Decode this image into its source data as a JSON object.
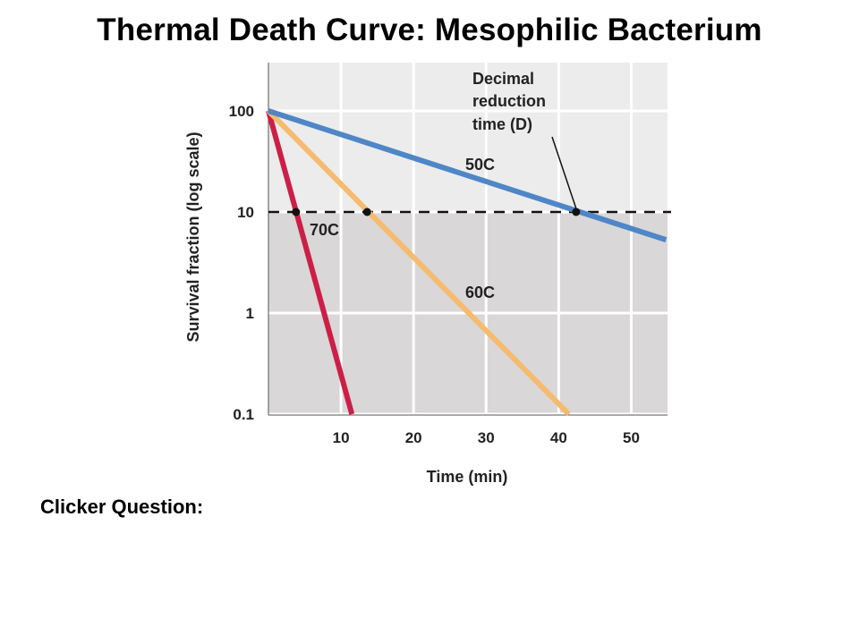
{
  "slide": {
    "title": "Thermal Death Curve: Mesophilic Bacterium",
    "question": "Clicker Question:"
  },
  "chart_data": {
    "type": "line",
    "title": "",
    "xlabel": "Time (min)",
    "ylabel": "Survival fraction (log scale)",
    "y_scale": "log",
    "xlim": [
      0,
      55
    ],
    "ylim": [
      0.1,
      200
    ],
    "x_ticks": [
      10,
      20,
      30,
      40,
      50
    ],
    "x_tick_labels": [
      "10",
      "20",
      "30",
      "40",
      "50"
    ],
    "y_ticks": [
      100,
      10,
      1,
      0.1
    ],
    "y_tick_labels": [
      "100",
      "10",
      "1",
      "0.1"
    ],
    "grid": true,
    "shaded_region": {
      "y_max": 10,
      "color": "#d9d7d8"
    },
    "reference_line": {
      "y": 10,
      "style": "dashed"
    },
    "series": [
      {
        "name": "70C",
        "color": "#cc1f47",
        "x": [
          0,
          11.5
        ],
        "y": [
          100,
          0.1
        ],
        "d_point": [
          3.8,
          10
        ]
      },
      {
        "name": "60C",
        "color": "#f5bb6e",
        "x": [
          0,
          41.4
        ],
        "y": [
          100,
          0.1
        ],
        "d_point": [
          13.6,
          10
        ]
      },
      {
        "name": "50C",
        "color": "#4f86c6",
        "x": [
          0,
          54.8
        ],
        "y": [
          100,
          5.3
        ],
        "d_point": [
          42.4,
          10
        ]
      }
    ],
    "annotation": {
      "lines": [
        "Decimal",
        "reduction",
        "time (D)"
      ],
      "points_to": [
        42.4,
        10
      ]
    }
  }
}
